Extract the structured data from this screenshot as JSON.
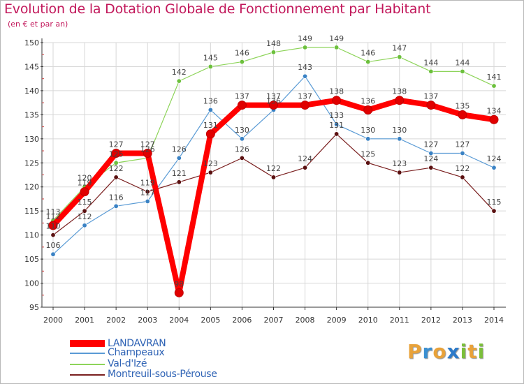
{
  "title": "Evolution de la Dotation Globale de Fonctionnement par Habitant",
  "subtitle": "(en € et par an)",
  "logo": {
    "letters": [
      "P",
      "r",
      "o",
      "x",
      "i",
      "t",
      "i"
    ],
    "colors": [
      "#e8a23a",
      "#3a8fd1",
      "#e8a23a",
      "#2c7ac9",
      "#7bbf3a",
      "#e8a23a",
      "#7bbf3a"
    ]
  },
  "chart_data": {
    "type": "line",
    "title": "Evolution de la Dotation Globale de Fonctionnement par Habitant",
    "xlabel": "",
    "ylabel": "(en € et par an)",
    "ylim": [
      95,
      150
    ],
    "yticks": [
      95,
      100,
      105,
      110,
      115,
      120,
      125,
      130,
      135,
      140,
      145,
      150
    ],
    "categories": [
      "2000",
      "2001",
      "2002",
      "2003",
      "2004",
      "2005",
      "2006",
      "2007",
      "2008",
      "2009",
      "2010",
      "2011",
      "2012",
      "2013",
      "2014"
    ],
    "series": [
      {
        "name": "Montreuil-sous-Pérouse",
        "color": "#7a1f1f",
        "dot": "#5a1010",
        "values": [
          110,
          115,
          122,
          119,
          121,
          123,
          126,
          122,
          124,
          131,
          125,
          123,
          124,
          122,
          115
        ]
      },
      {
        "name": "Champeaux",
        "color": "#5a9bd5",
        "dot": "#3a82c4",
        "values": [
          106,
          112,
          116,
          117,
          126,
          136,
          130,
          136,
          143,
          133,
          130,
          130,
          127,
          127,
          124
        ]
      },
      {
        "name": "Val-d'Izé",
        "color": "#8ed45a",
        "dot": "#6cc03c",
        "values": [
          113,
          120,
          125,
          126,
          142,
          145,
          146,
          148,
          149,
          149,
          146,
          147,
          144,
          144,
          141
        ]
      },
      {
        "name": "LANDAVRAN",
        "color": "#ff0000",
        "dot": "#e00000",
        "values": [
          112,
          119,
          127,
          127,
          98,
          131,
          137,
          137,
          137,
          138,
          136,
          138,
          137,
          135,
          134
        ]
      }
    ],
    "legend": [
      "LANDAVRAN",
      "Champeaux",
      "Val-d'Izé",
      "Montreuil-sous-Pérouse"
    ]
  }
}
